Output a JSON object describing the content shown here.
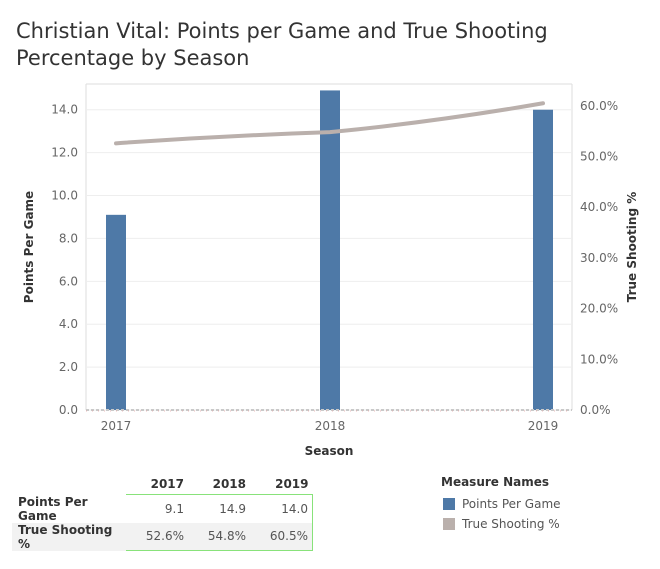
{
  "title": "Christian Vital: Points per Game and True Shooting Percentage by Season",
  "colors": {
    "bar": "#4e79a7",
    "line": "#bab0ac",
    "grid": "#eeeeee",
    "axis": "#dddddd",
    "text": "#666666"
  },
  "chart_data": {
    "type": "bar",
    "categories": [
      "2017",
      "2018",
      "2019"
    ],
    "series": [
      {
        "name": "Points Per Game",
        "type": "bar",
        "axis": "left",
        "values": [
          9.1,
          14.9,
          14.0
        ]
      },
      {
        "name": "True Shooting %",
        "type": "line",
        "axis": "right",
        "values": [
          52.6,
          54.8,
          60.5
        ]
      }
    ],
    "title": "Christian Vital: Points per Game and True Shooting Percentage by Season",
    "xlabel": "Season",
    "ylabel": "Points Per Game",
    "y2label": "True Shooting %",
    "ylim": [
      0,
      15.2
    ],
    "y2lim": [
      0,
      64.3
    ],
    "yticks": [
      "0.0",
      "2.0",
      "4.0",
      "6.0",
      "8.0",
      "10.0",
      "12.0",
      "14.0"
    ],
    "y2ticks": [
      "0.0%",
      "10.0%",
      "20.0%",
      "30.0%",
      "40.0%",
      "50.0%",
      "60.0%"
    ],
    "grid": true,
    "legend": "bottom-right"
  },
  "table": {
    "columns": [
      "2017",
      "2018",
      "2019"
    ],
    "rows": [
      {
        "label": "Points Per Game",
        "values": [
          "9.1",
          "14.9",
          "14.0"
        ]
      },
      {
        "label": "True Shooting %",
        "values": [
          "52.6%",
          "54.8%",
          "60.5%"
        ]
      }
    ]
  },
  "legend": {
    "title": "Measure Names",
    "items": [
      {
        "label": "Points Per Game",
        "color": "#4e79a7"
      },
      {
        "label": "True Shooting %",
        "color": "#bab0ac"
      }
    ]
  }
}
